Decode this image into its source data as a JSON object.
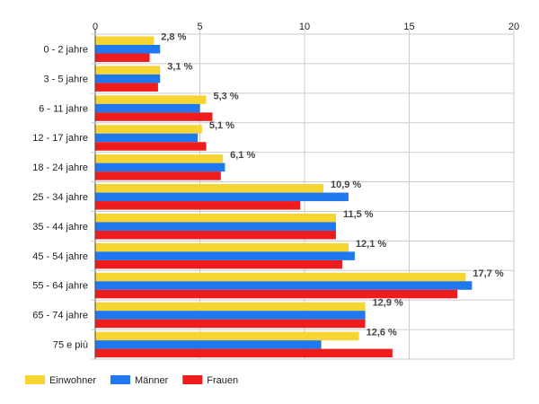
{
  "chart_data": {
    "type": "bar",
    "orientation": "horizontal",
    "categories": [
      "0 - 2 jahre",
      "3 - 5 jahre",
      "6 - 11 jahre",
      "12 - 17 jahre",
      "18 - 24 jahre",
      "25 - 34 jahre",
      "35 - 44 jahre",
      "45 - 54 jahre",
      "55 - 64 jahre",
      "65 - 74 jahre",
      "75 e più"
    ],
    "series": [
      {
        "name": "Einwohner",
        "color": "#f6d431",
        "values": [
          2.8,
          3.1,
          5.3,
          5.1,
          6.1,
          10.9,
          11.5,
          12.1,
          17.7,
          12.9,
          12.6
        ]
      },
      {
        "name": "Männer",
        "color": "#1f78f0",
        "values": [
          3.1,
          3.1,
          5.0,
          4.9,
          6.2,
          12.1,
          11.5,
          12.4,
          18.0,
          12.9,
          10.8
        ]
      },
      {
        "name": "Frauen",
        "color": "#ee1c1c",
        "values": [
          2.6,
          3.0,
          5.6,
          5.3,
          6.0,
          9.8,
          11.5,
          11.8,
          17.3,
          12.9,
          14.2
        ]
      }
    ],
    "data_labels": [
      "2,8 %",
      "3,1 %",
      "5,3 %",
      "5,1 %",
      "6,1 %",
      "10,9 %",
      "11,5 %",
      "12,1 %",
      "17,7 %",
      "12,9 %",
      "12,6 %"
    ],
    "x_ticks": [
      "0",
      "5",
      "10",
      "15",
      "20"
    ],
    "xlim": [
      0,
      20
    ],
    "xaxis_position": "top",
    "grid": true,
    "legend_position": "bottom-left",
    "title": "",
    "xlabel": "",
    "ylabel": ""
  }
}
